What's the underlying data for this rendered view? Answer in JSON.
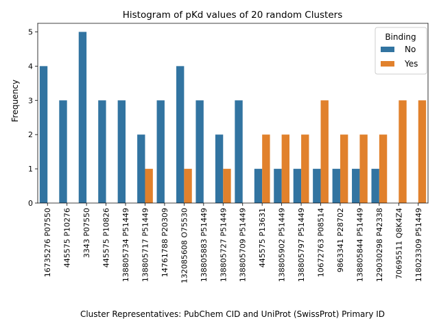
{
  "chart_data": {
    "type": "bar",
    "title": "Histogram of pKd values of 20 random Clusters",
    "xlabel": "Cluster Representatives: PubChem CID and UniProt (SwissProt) Primary ID",
    "ylabel": "Frequency",
    "ylim": [
      0,
      5.25
    ],
    "yticks": [
      "0",
      "1",
      "2",
      "3",
      "4",
      "5"
    ],
    "grid": false,
    "legend": {
      "title": "Binding",
      "placement": "top-right"
    },
    "categories": [
      "16735276 P07550",
      "445575 P10276",
      "3343 P07550",
      "445575 P10826",
      "138805734 P51449",
      "138805717 P51449",
      "14761788 P20309",
      "132085608 O75530",
      "138805883 P51449",
      "138805727 P51449",
      "138805709 P51449",
      "445575 P13631",
      "138805902 P51449",
      "138805797 P51449",
      "10672763 P08514",
      "9863341 P28702",
      "138805844 P51449",
      "129030298 P42338",
      "70695511 Q8K4Z4",
      "118023309 P51449"
    ],
    "series": [
      {
        "name": "No",
        "color": "#3274a1",
        "values": [
          4,
          3,
          5,
          3,
          3,
          2,
          3,
          4,
          3,
          2,
          3,
          1,
          1,
          1,
          1,
          1,
          1,
          1,
          0,
          0
        ]
      },
      {
        "name": "Yes",
        "color": "#e1812c",
        "values": [
          0,
          0,
          0,
          0,
          0,
          1,
          0,
          1,
          0,
          1,
          0,
          2,
          2,
          2,
          3,
          2,
          2,
          2,
          3,
          3
        ]
      }
    ]
  }
}
